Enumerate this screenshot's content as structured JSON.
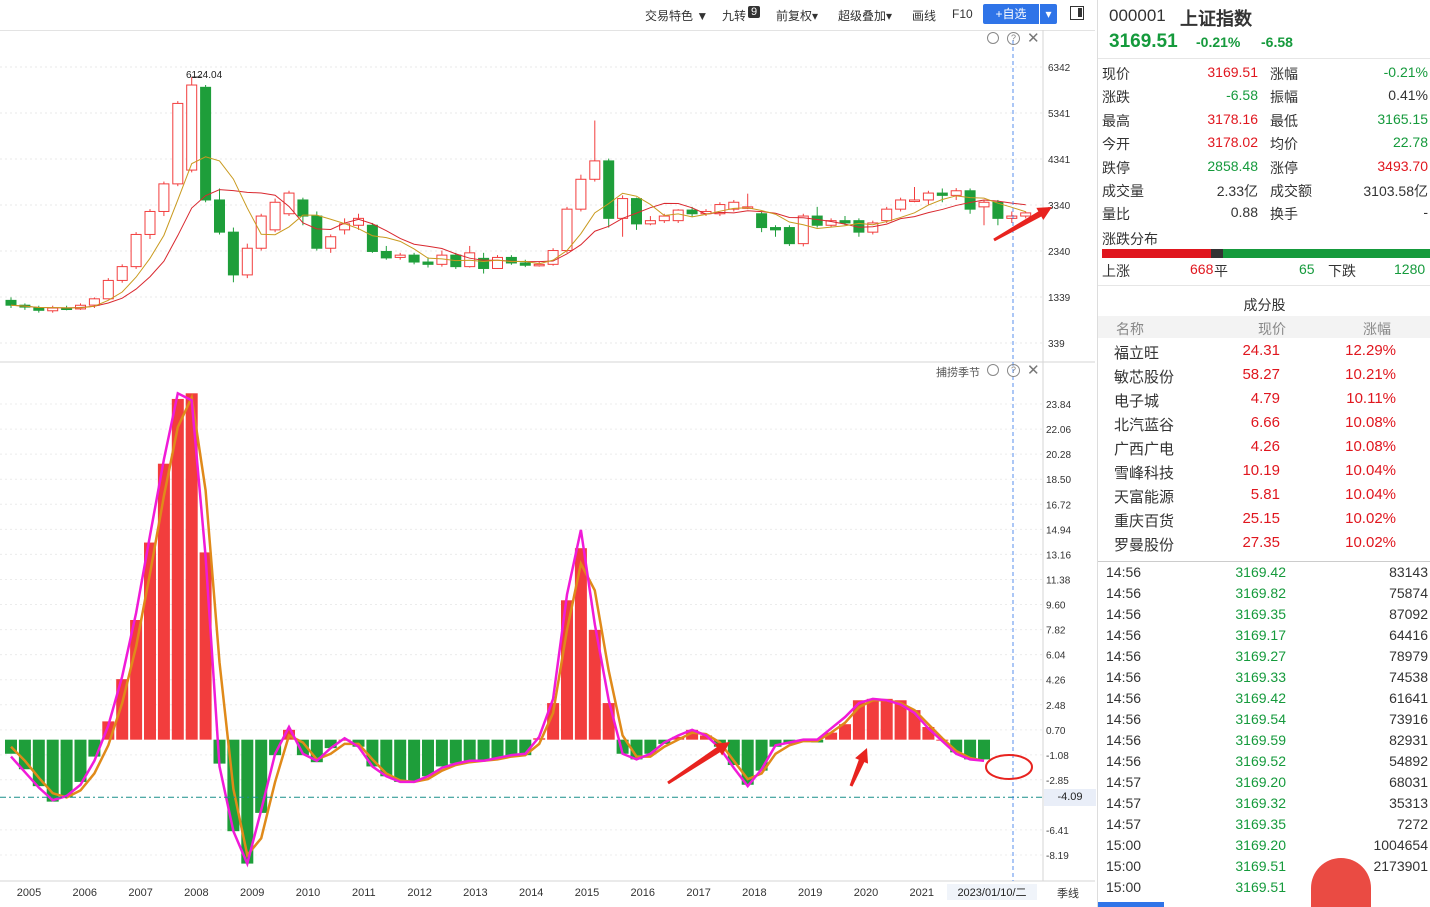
{
  "toolbar": {
    "items": [
      "交易特色 ▼",
      "九转",
      "9",
      "前复权▾",
      "超级叠加▾",
      "画线",
      "F10"
    ],
    "add_label": "+自选",
    "add_drop": "▾"
  },
  "main_chart": {
    "y_ticks": [
      "6342",
      "5341",
      "4341",
      "3340",
      "2340",
      "1339",
      "339"
    ],
    "peak_label": "6124.04",
    "panel_icons": [
      "settings-icon",
      "help-icon",
      "close-icon"
    ]
  },
  "indicator": {
    "name": "捕捞季节",
    "y_ticks": [
      "23.84",
      "22.06",
      "20.28",
      "18.50",
      "16.72",
      "14.94",
      "13.16",
      "11.38",
      "9.60",
      "7.82",
      "6.04",
      "4.26",
      "2.48",
      "0.70",
      "-1.08",
      "-2.85",
      "-6.41",
      "-8.19"
    ],
    "current_value": "-4.09"
  },
  "x_axis": {
    "years": [
      "2005",
      "2006",
      "2007",
      "2008",
      "2009",
      "2010",
      "2011",
      "2012",
      "2013",
      "2014",
      "2015",
      "2016",
      "2017",
      "2018",
      "2019",
      "2020",
      "2021"
    ],
    "cursor_label": "2023/01/10/二",
    "period": "季线"
  },
  "colors": {
    "up": "#f23d3d",
    "down": "#1e9e3a",
    "ma1": "#d9282f",
    "ma2": "#c99a1f",
    "line_fast": "#f01bd8",
    "line_slow": "#e08a1a",
    "accent": "#2f74e8"
  },
  "candles": [
    {
      "o": 1266,
      "c": 1161,
      "h": 1330,
      "l": 1100
    },
    {
      "o": 1161,
      "c": 1120,
      "h": 1200,
      "l": 1060
    },
    {
      "o": 1100,
      "c": 1050,
      "h": 1150,
      "l": 1000
    },
    {
      "o": 1040,
      "c": 1100,
      "h": 1150,
      "l": 998
    },
    {
      "o": 1100,
      "c": 1080,
      "h": 1150,
      "l": 1050
    },
    {
      "o": 1080,
      "c": 1160,
      "h": 1200,
      "l": 1060
    },
    {
      "o": 1163,
      "c": 1300,
      "h": 1330,
      "l": 1100
    },
    {
      "o": 1300,
      "c": 1700,
      "h": 1750,
      "l": 1290
    },
    {
      "o": 1700,
      "c": 2000,
      "h": 2050,
      "l": 1650
    },
    {
      "o": 2000,
      "c": 2700,
      "h": 2750,
      "l": 1950
    },
    {
      "o": 2700,
      "c": 3200,
      "h": 3250,
      "l": 2600
    },
    {
      "o": 3200,
      "c": 3800,
      "h": 3850,
      "l": 3100
    },
    {
      "o": 3800,
      "c": 5550,
      "h": 5600,
      "l": 3750
    },
    {
      "o": 4100,
      "c": 5950,
      "h": 6124,
      "l": 4050
    },
    {
      "o": 5900,
      "c": 3450,
      "h": 5950,
      "l": 3400
    },
    {
      "o": 3450,
      "c": 2750,
      "h": 3700,
      "l": 2700
    },
    {
      "o": 2750,
      "c": 1820,
      "h": 2850,
      "l": 1660
    },
    {
      "o": 1820,
      "c": 2400,
      "h": 2500,
      "l": 1750
    },
    {
      "o": 2400,
      "c": 3100,
      "h": 3150,
      "l": 2350
    },
    {
      "o": 2800,
      "c": 3400,
      "h": 3480,
      "l": 2750
    },
    {
      "o": 3150,
      "c": 3600,
      "h": 3650,
      "l": 3100
    },
    {
      "o": 3450,
      "c": 3100,
      "h": 3500,
      "l": 2900
    },
    {
      "o": 3100,
      "c": 2400,
      "h": 3200,
      "l": 2350
    },
    {
      "o": 2400,
      "c": 2650,
      "h": 2700,
      "l": 2300
    },
    {
      "o": 2800,
      "c": 2930,
      "h": 3050,
      "l": 2700
    },
    {
      "o": 2900,
      "c": 3050,
      "h": 3150,
      "l": 2800
    },
    {
      "o": 2900,
      "c": 2330,
      "h": 2950,
      "l": 2300
    },
    {
      "o": 2330,
      "c": 2190,
      "h": 2450,
      "l": 2150
    },
    {
      "o": 2200,
      "c": 2250,
      "h": 2300,
      "l": 2150
    },
    {
      "o": 2250,
      "c": 2100,
      "h": 2300,
      "l": 2050
    },
    {
      "o": 2100,
      "c": 2050,
      "h": 2200,
      "l": 1980
    },
    {
      "o": 2050,
      "c": 2250,
      "h": 2350,
      "l": 2000
    },
    {
      "o": 2250,
      "c": 2000,
      "h": 2300,
      "l": 1950
    },
    {
      "o": 2000,
      "c": 2300,
      "h": 2450,
      "l": 1980
    },
    {
      "o": 2180,
      "c": 1960,
      "h": 2300,
      "l": 1850
    },
    {
      "o": 1960,
      "c": 2200,
      "h": 2250,
      "l": 1950
    },
    {
      "o": 2200,
      "c": 2080,
      "h": 2250,
      "l": 2040
    },
    {
      "o": 2080,
      "c": 2030,
      "h": 2150,
      "l": 1990
    },
    {
      "o": 2030,
      "c": 2050,
      "h": 2100,
      "l": 2000
    },
    {
      "o": 2050,
      "c": 2350,
      "h": 2400,
      "l": 2020
    },
    {
      "o": 2350,
      "c": 3250,
      "h": 3300,
      "l": 2300
    },
    {
      "o": 3250,
      "c": 3900,
      "h": 4000,
      "l": 3200
    },
    {
      "o": 3900,
      "c": 4300,
      "h": 5178,
      "l": 3850
    },
    {
      "o": 4300,
      "c": 3050,
      "h": 4350,
      "l": 2850
    },
    {
      "o": 3050,
      "c": 3480,
      "h": 3550,
      "l": 2650
    },
    {
      "o": 3480,
      "c": 2930,
      "h": 3500,
      "l": 2800
    },
    {
      "o": 2930,
      "c": 3000,
      "h": 3100,
      "l": 2900
    },
    {
      "o": 3000,
      "c": 3100,
      "h": 3150,
      "l": 2950
    },
    {
      "o": 3000,
      "c": 3230,
      "h": 3250,
      "l": 2950
    },
    {
      "o": 3230,
      "c": 3150,
      "h": 3300,
      "l": 3080
    },
    {
      "o": 3150,
      "c": 3200,
      "h": 3250,
      "l": 3100
    },
    {
      "o": 3150,
      "c": 3350,
      "h": 3400,
      "l": 3100
    },
    {
      "o": 3250,
      "c": 3400,
      "h": 3450,
      "l": 3200
    },
    {
      "o": 3300,
      "c": 3300,
      "h": 3587,
      "l": 3250
    },
    {
      "o": 3150,
      "c": 2850,
      "h": 3200,
      "l": 2750
    },
    {
      "o": 2850,
      "c": 2800,
      "h": 2900,
      "l": 2650
    },
    {
      "o": 2850,
      "c": 2500,
      "h": 2900,
      "l": 2450
    },
    {
      "o": 2500,
      "c": 3100,
      "h": 3150,
      "l": 2440
    },
    {
      "o": 3100,
      "c": 2900,
      "h": 3300,
      "l": 2850
    },
    {
      "o": 2900,
      "c": 3000,
      "h": 3050,
      "l": 2850
    },
    {
      "o": 3000,
      "c": 2950,
      "h": 3100,
      "l": 2900
    },
    {
      "o": 3000,
      "c": 2750,
      "h": 3050,
      "l": 2650
    },
    {
      "o": 2750,
      "c": 2950,
      "h": 3000,
      "l": 2700
    },
    {
      "o": 3000,
      "c": 3250,
      "h": 3300,
      "l": 2950
    },
    {
      "o": 3250,
      "c": 3450,
      "h": 3500,
      "l": 3200
    },
    {
      "o": 3450,
      "c": 3450,
      "h": 3731,
      "l": 3400
    },
    {
      "o": 3450,
      "c": 3600,
      "h": 3650,
      "l": 3350
    },
    {
      "o": 3600,
      "c": 3550,
      "h": 3700,
      "l": 3400
    },
    {
      "o": 3550,
      "c": 3650,
      "h": 3708,
      "l": 3450
    },
    {
      "o": 3650,
      "c": 3250,
      "h": 3700,
      "l": 3150
    },
    {
      "o": 3300,
      "c": 3400,
      "h": 3450,
      "l": 2900
    },
    {
      "o": 3400,
      "c": 3050,
      "h": 3450,
      "l": 2900
    },
    {
      "o": 3050,
      "c": 3100,
      "h": 3200,
      "l": 2950
    },
    {
      "o": 3100,
      "c": 3169,
      "h": 3200,
      "l": 3050
    }
  ],
  "series": {
    "macd": [
      -1.0,
      -2.1,
      -3.3,
      -4.4,
      -4.1,
      -3.0,
      -1.2,
      1.3,
      4.3,
      8.5,
      14.0,
      19.6,
      24.2,
      24.6,
      13.3,
      -1.7,
      -6.5,
      -8.8,
      -5.2,
      -1.1,
      0.7,
      -1.1,
      -1.6,
      -0.6,
      0.0,
      -0.5,
      -1.9,
      -2.6,
      -3.0,
      -3.0,
      -2.6,
      -1.9,
      -1.7,
      -1.5,
      -1.5,
      -1.3,
      -1.2,
      -1.1,
      0.1,
      2.6,
      9.9,
      13.6,
      7.8,
      2.6,
      -1.0,
      -1.4,
      -1.0,
      -0.3,
      0.2,
      0.7,
      0.3,
      -0.5,
      -1.8,
      -3.2,
      -2.2,
      -0.5,
      -0.3,
      0.0,
      -0.2,
      0.5,
      1.1,
      2.8,
      2.9,
      2.9,
      2.8,
      2.1,
      0.9,
      0.0,
      -0.9,
      -1.4,
      -1.4
    ],
    "fast": [
      -1.2,
      -2.3,
      -3.4,
      -4.3,
      -4.0,
      -3.2,
      -1.5,
      1.0,
      4.5,
      9.0,
      14.5,
      19.9,
      24.6,
      24.1,
      13.0,
      -1.9,
      -6.5,
      -8.8,
      -5.0,
      -1.0,
      0.9,
      -1.0,
      -1.5,
      -0.6,
      0.1,
      -0.5,
      -1.9,
      -2.6,
      -3.0,
      -3.0,
      -2.6,
      -2.0,
      -1.7,
      -1.5,
      -1.5,
      -1.3,
      -1.1,
      -1.0,
      0.2,
      2.9,
      10.3,
      14.9,
      8.2,
      2.8,
      -1.0,
      -1.4,
      -1.0,
      -0.2,
      0.3,
      0.7,
      0.3,
      -0.6,
      -2.0,
      -3.3,
      -2.1,
      -0.4,
      -0.2,
      0.0,
      0.0,
      0.8,
      1.6,
      2.6,
      2.9,
      2.8,
      2.5,
      1.9,
      0.8,
      -0.1,
      -1.0,
      -1.4,
      -1.5
    ],
    "slow": [
      -0.5,
      -1.5,
      -2.7,
      -3.8,
      -4.1,
      -3.6,
      -2.4,
      -0.4,
      2.6,
      6.6,
      11.8,
      17.3,
      22.2,
      24.3,
      17.7,
      5.5,
      -3.5,
      -8.2,
      -7.0,
      -3.0,
      0.3,
      -0.2,
      -1.4,
      -1.0,
      -0.3,
      -0.3,
      -1.4,
      -2.4,
      -2.9,
      -3.0,
      -2.8,
      -2.2,
      -1.8,
      -1.6,
      -1.5,
      -1.4,
      -1.2,
      -1.1,
      -0.3,
      1.9,
      7.8,
      12.5,
      10.6,
      4.9,
      0.3,
      -1.2,
      -1.2,
      -0.5,
      0.0,
      0.5,
      0.4,
      -0.2,
      -1.5,
      -2.8,
      -2.4,
      -1.0,
      -0.4,
      -0.1,
      -0.1,
      0.5,
      1.2,
      2.3,
      2.8,
      2.8,
      2.6,
      2.1,
      1.1,
      0.1,
      -0.8,
      -1.3,
      -1.5
    ]
  },
  "quote": {
    "code": "000001",
    "name": "上证指数",
    "price": "3169.51",
    "pct": "-0.21%",
    "chg": "-6.58",
    "fields": [
      {
        "l1": "现价",
        "v1": "3169.51",
        "c1": "red",
        "l2": "涨幅",
        "v2": "-0.21%",
        "c2": "green"
      },
      {
        "l1": "涨跌",
        "v1": "-6.58",
        "c1": "green",
        "l2": "振幅",
        "v2": "0.41%",
        "c2": "grey"
      },
      {
        "l1": "最高",
        "v1": "3178.16",
        "c1": "red",
        "l2": "最低",
        "v2": "3165.15",
        "c2": "green"
      },
      {
        "l1": "今开",
        "v1": "3178.02",
        "c1": "red",
        "l2": "均价",
        "v2": "22.78",
        "c2": "green"
      },
      {
        "l1": "跌停",
        "v1": "2858.48",
        "c1": "green",
        "l2": "涨停",
        "v2": "3493.70",
        "c2": "red"
      },
      {
        "l1": "成交量",
        "v1": "2.33亿",
        "c1": "grey",
        "l2": "成交额",
        "v2": "3103.58亿",
        "c2": "grey"
      },
      {
        "l1": "量比",
        "v1": "0.88",
        "c1": "grey",
        "l2": "换手",
        "v2": "-",
        "c2": "grey"
      }
    ],
    "dist_title": "涨跌分布",
    "up_label": "上涨",
    "up_count": "668",
    "flat_label": "平",
    "flat_count": "65",
    "down_label": "下跌",
    "down_count": "1280"
  },
  "constituents": {
    "title": "成分股",
    "headers": [
      "名称",
      "现价",
      "涨幅"
    ],
    "rows": [
      {
        "name": "福立旺",
        "price": "24.31",
        "pct": "12.29%"
      },
      {
        "name": "敏芯股份",
        "price": "58.27",
        "pct": "10.21%"
      },
      {
        "name": "电子城",
        "price": "4.79",
        "pct": "10.11%"
      },
      {
        "name": "北汽蓝谷",
        "price": "6.66",
        "pct": "10.08%"
      },
      {
        "name": "广西广电",
        "price": "4.26",
        "pct": "10.08%"
      },
      {
        "name": "雪峰科技",
        "price": "10.19",
        "pct": "10.04%"
      },
      {
        "name": "天富能源",
        "price": "5.81",
        "pct": "10.04%"
      },
      {
        "name": "重庆百货",
        "price": "25.15",
        "pct": "10.02%"
      },
      {
        "name": "罗曼股份",
        "price": "27.35",
        "pct": "10.02%"
      }
    ]
  },
  "ticks": [
    {
      "time": "14:56",
      "price": "3169.42",
      "vol": "83143"
    },
    {
      "time": "14:56",
      "price": "3169.82",
      "vol": "75874"
    },
    {
      "time": "14:56",
      "price": "3169.35",
      "vol": "87092"
    },
    {
      "time": "14:56",
      "price": "3169.17",
      "vol": "64416"
    },
    {
      "time": "14:56",
      "price": "3169.27",
      "vol": "78979"
    },
    {
      "time": "14:56",
      "price": "3169.33",
      "vol": "74538"
    },
    {
      "time": "14:56",
      "price": "3169.42",
      "vol": "61641"
    },
    {
      "time": "14:56",
      "price": "3169.54",
      "vol": "73916"
    },
    {
      "time": "14:56",
      "price": "3169.59",
      "vol": "82931"
    },
    {
      "time": "14:56",
      "price": "3169.52",
      "vol": "54892"
    },
    {
      "time": "14:57",
      "price": "3169.20",
      "vol": "68031"
    },
    {
      "time": "14:57",
      "price": "3169.32",
      "vol": "35313"
    },
    {
      "time": "14:57",
      "price": "3169.35",
      "vol": "7272"
    },
    {
      "time": "15:00",
      "price": "3169.20",
      "vol": "1004654"
    },
    {
      "time": "15:00",
      "price": "3169.51",
      "vol": "2173901"
    },
    {
      "time": "15:00",
      "price": "3169.51",
      "vol": ""
    }
  ]
}
